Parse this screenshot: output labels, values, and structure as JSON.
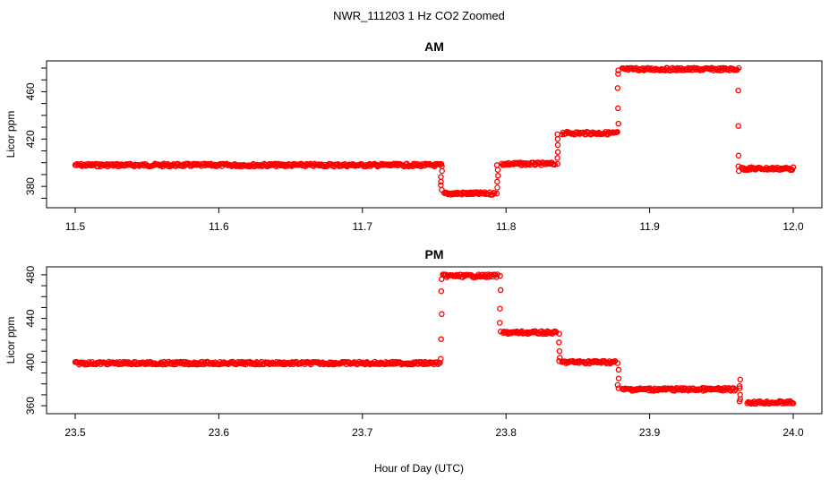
{
  "figure": {
    "title": "NWR_111203  1 Hz CO2 Zoomed",
    "xlabel": "Hour of Day (UTC)"
  },
  "chart_data": [
    {
      "type": "scatter",
      "title": "AM",
      "xlabel": "",
      "ylabel": "Licor ppm",
      "xlim": [
        11.5,
        12.0
      ],
      "ylim": [
        365,
        483
      ],
      "xticks": [
        "11.5",
        "11.6",
        "11.7",
        "11.8",
        "11.9",
        "12.0"
      ],
      "yticks": [
        "380",
        "420",
        "460"
      ],
      "marker_color": "#ff0000",
      "series": [
        {
          "name": "CO2",
          "segments": [
            {
              "x": [
                11.5,
                11.755
              ],
              "y": 398
            },
            {
              "x": [
                11.757,
                11.792
              ],
              "y": 374
            },
            {
              "x": [
                11.797,
                11.834
              ],
              "y": 399
            },
            {
              "x": [
                11.839,
                11.877
              ],
              "y": 425
            },
            {
              "x": [
                11.881,
                11.961
              ],
              "y": 479
            },
            {
              "x": [
                11.964,
                12.0
              ],
              "y": 395
            }
          ],
          "transitions": [
            {
              "x": 11.755,
              "y": [
                397,
                393,
                388,
                384,
                381,
                377
              ]
            },
            {
              "x": 11.794,
              "y": [
                374,
                379,
                384,
                389,
                394,
                398
              ]
            },
            {
              "x": 11.836,
              "y": [
                399,
                404,
                409,
                415,
                420,
                424
              ]
            },
            {
              "x": 11.878,
              "y": [
                426,
                433,
                446,
                463,
                475,
                478
              ]
            },
            {
              "x": 11.962,
              "y": [
                480,
                461,
                431,
                406,
                397,
                393
              ]
            }
          ]
        }
      ]
    },
    {
      "type": "scatter",
      "title": "PM",
      "xlabel": "",
      "ylabel": "Licor ppm",
      "xlim": [
        23.5,
        24.0
      ],
      "ylim": [
        356,
        484
      ],
      "xticks": [
        "23.5",
        "23.6",
        "23.7",
        "23.8",
        "23.9",
        "24.0"
      ],
      "yticks": [
        "360",
        "400",
        "440",
        "480"
      ],
      "marker_color": "#ff0000",
      "series": [
        {
          "name": "CO2",
          "segments": [
            {
              "x": [
                23.5,
                23.754
              ],
              "y": 399
            },
            {
              "x": [
                23.756,
                23.794
              ],
              "y": 479
            },
            {
              "x": [
                23.798,
                23.835
              ],
              "y": 427
            },
            {
              "x": [
                23.839,
                23.876
              ],
              "y": 400
            },
            {
              "x": [
                23.881,
                23.96
              ],
              "y": 375
            },
            {
              "x": [
                23.968,
                24.0
              ],
              "y": 363
            }
          ],
          "transitions": [
            {
              "x": 23.755,
              "y": [
                403,
                421,
                444,
                465,
                476
              ]
            },
            {
              "x": 23.796,
              "y": [
                479,
                466,
                449,
                436,
                428
              ]
            },
            {
              "x": 23.837,
              "y": [
                426,
                418,
                410,
                404,
                401
              ]
            },
            {
              "x": 23.878,
              "y": [
                399,
                393,
                385,
                379,
                376
              ]
            },
            {
              "x": 23.963,
              "y": [
                376,
                384,
                378,
                370,
                366,
                364
              ]
            }
          ]
        }
      ]
    }
  ]
}
